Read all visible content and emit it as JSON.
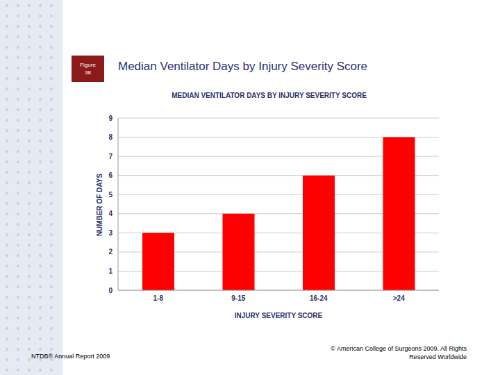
{
  "chart_data": {
    "type": "bar",
    "title": "MEDIAN VENTILATOR DAYS BY INJURY SEVERITY SCORE",
    "x_label": "INJURY SEVERITY SCORE",
    "y_label": "NUMBER OF DAYS",
    "categories": [
      "1-8",
      "9-15",
      "16-24",
      ">24"
    ],
    "values": [
      3,
      4,
      6,
      8
    ],
    "color": "#ff0000",
    "ylim": [
      0,
      9
    ],
    "yticks": [
      0,
      1,
      2,
      3,
      4,
      5,
      6,
      7,
      8,
      9
    ],
    "grid": true
  },
  "slide": {
    "figure_label": "Figure 38",
    "title": "Median Ventilator Days by Injury Severity Score",
    "footer_left": "NTDB® Annual Report 2009",
    "footer_right": "© American College of Surgeons 2009.  All Rights Reserved Worldwide"
  }
}
